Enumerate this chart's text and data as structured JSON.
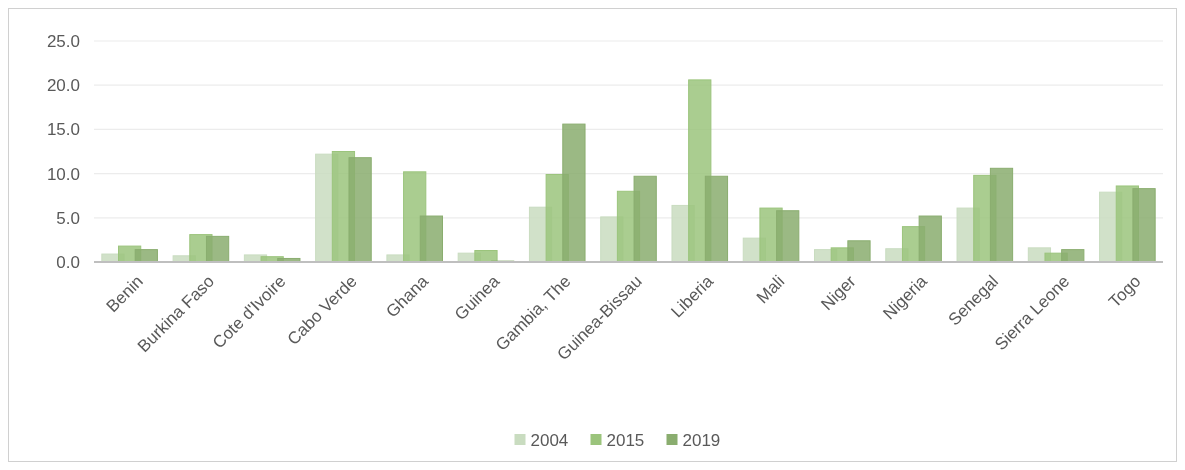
{
  "chart_data": {
    "type": "bar",
    "categories": [
      "Benin",
      "Burkina Faso",
      "Cote d'Ivoire",
      "Cabo Verde",
      "Ghana",
      "Guinea",
      "Gambia, The",
      "Guinea-Bissau",
      "Liberia",
      "Mali",
      "Niger",
      "Nigeria",
      "Senegal",
      "Sierra Leone",
      "Togo"
    ],
    "series": [
      {
        "name": "2004",
        "color": "#c9dcc0",
        "values": [
          0.9,
          0.7,
          0.8,
          12.2,
          0.8,
          1.0,
          6.2,
          5.1,
          6.4,
          2.7,
          1.4,
          1.5,
          6.1,
          1.6,
          7.9
        ]
      },
      {
        "name": "2015",
        "color": "#9bc47c",
        "values": [
          1.8,
          3.1,
          0.6,
          12.5,
          10.2,
          1.3,
          9.9,
          8.0,
          20.6,
          6.1,
          1.6,
          4.0,
          9.8,
          1.0,
          8.6
        ]
      },
      {
        "name": "2019",
        "color": "#8aad6f",
        "values": [
          1.4,
          2.9,
          0.4,
          11.8,
          5.2,
          0.1,
          15.6,
          9.7,
          9.7,
          5.8,
          2.4,
          5.2,
          10.6,
          1.4,
          8.3
        ]
      }
    ],
    "ylim": [
      0,
      25
    ],
    "yticks": [
      {
        "value": 0,
        "label": "0.0"
      },
      {
        "value": 5,
        "label": "5.0"
      },
      {
        "value": 10,
        "label": "10.0"
      },
      {
        "value": 15,
        "label": "15.0"
      },
      {
        "value": 20,
        "label": "20.0"
      },
      {
        "value": 25,
        "label": "25.0"
      }
    ],
    "grid": "y",
    "legend": "bottom"
  }
}
